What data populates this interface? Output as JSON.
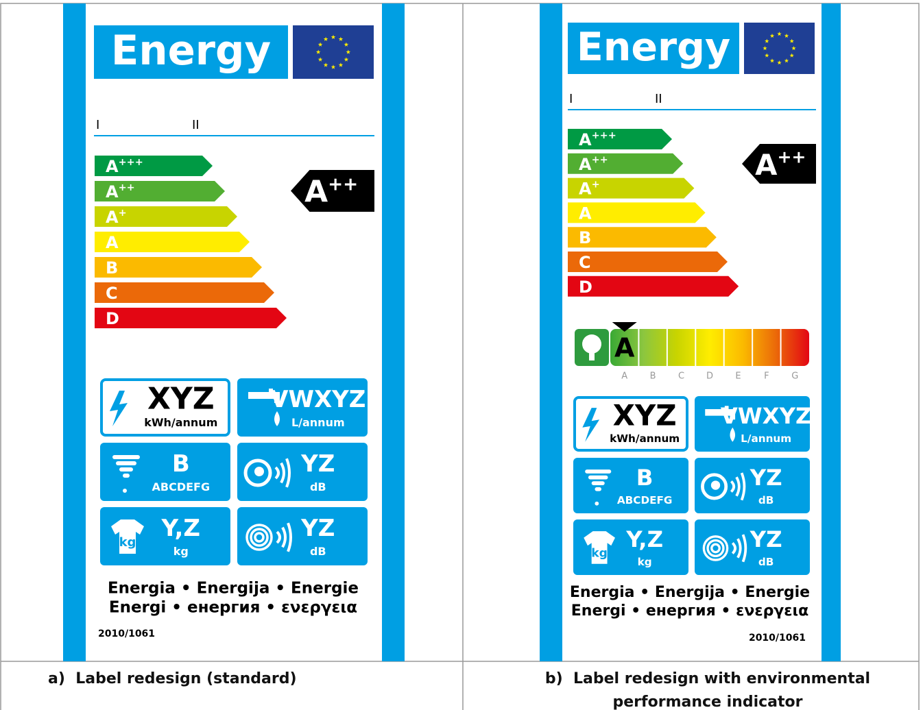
{
  "labels": [
    {
      "header": "Energy",
      "scale_marks": [
        "I",
        "II"
      ],
      "classes": [
        {
          "letter": "A",
          "sup": "+++"
        },
        {
          "letter": "A",
          "sup": "++"
        },
        {
          "letter": "A",
          "sup": "+"
        },
        {
          "letter": "A"
        },
        {
          "letter": "B"
        },
        {
          "letter": "C"
        },
        {
          "letter": "D"
        }
      ],
      "rating": {
        "letter": "A",
        "sup": "++"
      },
      "icons": [
        {
          "value": "XYZ",
          "unit": "kWh/annum"
        },
        {
          "value": "VWXYZ",
          "unit": "L/annum"
        },
        {
          "value": "B",
          "unit": "ABCDEFG"
        },
        {
          "value": "YZ",
          "unit": "dB"
        },
        {
          "value": "Y,Z",
          "unit": "kg"
        },
        {
          "value": "YZ",
          "unit": "dB"
        }
      ],
      "shirt_unit": "kg",
      "languages": [
        "Energia • Energija • Energie",
        "Energi • енергия • ενεργεια"
      ],
      "regulation": "2010/1061"
    },
    {
      "header": "Energy",
      "scale_marks": [
        "I",
        "II"
      ],
      "classes": [
        {
          "letter": "A",
          "sup": "+++"
        },
        {
          "letter": "A",
          "sup": "++"
        },
        {
          "letter": "A",
          "sup": "+"
        },
        {
          "letter": "A"
        },
        {
          "letter": "B"
        },
        {
          "letter": "C"
        },
        {
          "letter": "D"
        }
      ],
      "rating": {
        "letter": "A",
        "sup": "++"
      },
      "environmental": {
        "rating": "A",
        "scale": [
          "A",
          "B",
          "C",
          "D",
          "E",
          "F",
          "G"
        ]
      },
      "icons": [
        {
          "value": "XYZ",
          "unit": "kWh/annum"
        },
        {
          "value": "VWXYZ",
          "unit": "L/annum"
        },
        {
          "value": "B",
          "unit": "ABCDEFG"
        },
        {
          "value": "YZ",
          "unit": "dB"
        },
        {
          "value": "Y,Z",
          "unit": "kg"
        },
        {
          "value": "YZ",
          "unit": "dB"
        }
      ],
      "shirt_unit": "kg",
      "languages": [
        "Energia • Energija • Energie",
        "Energi • енергия • ενεργεια"
      ],
      "regulation": "2010/1061"
    }
  ],
  "captions": [
    "a)  Label redesign (standard)",
    "b)  Label redesign with environmental performance indicator"
  ]
}
